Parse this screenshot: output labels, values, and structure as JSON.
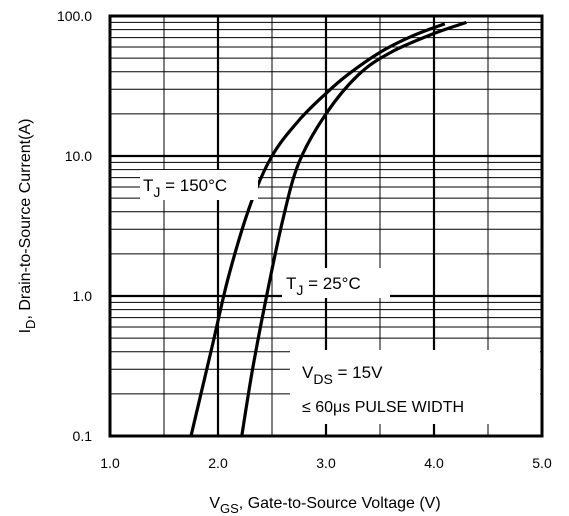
{
  "chart_data": {
    "type": "line",
    "title": "",
    "xlabel": {
      "main": "V",
      "sub": "GS",
      "rest": ", Gate-to-Source Voltage (V)"
    },
    "ylabel": {
      "main": "I",
      "sub": "D",
      "rest": ", Drain-to-Source Current(A)"
    },
    "xlim": [
      1.0,
      5.0
    ],
    "ylim": [
      0.1,
      100.0
    ],
    "yscale": "log",
    "x_ticks": [
      "1.0",
      "2.0",
      "3.0",
      "4.0",
      "5.0"
    ],
    "y_ticks": [
      "0.1",
      "1.0",
      "10.0",
      "100.0"
    ],
    "grid": true,
    "series": [
      {
        "label": {
          "main": "T",
          "sub": "J",
          "rest": " = 150°C"
        },
        "x": [
          1.75,
          1.95,
          2.1,
          2.3,
          2.5,
          2.75,
          3.0,
          3.2,
          3.5,
          3.8,
          4.1
        ],
        "y": [
          0.1,
          0.45,
          1.4,
          4.5,
          10.0,
          18.0,
          28.0,
          38.0,
          55.0,
          72.0,
          88.0
        ]
      },
      {
        "label": {
          "main": "T",
          "sub": "J",
          "rest": " = 25°C"
        },
        "x": [
          2.22,
          2.32,
          2.45,
          2.6,
          2.75,
          3.0,
          3.3,
          3.6,
          4.0,
          4.3
        ],
        "y": [
          0.1,
          0.3,
          1.0,
          3.5,
          9.0,
          20.0,
          38.0,
          55.0,
          75.0,
          90.0
        ]
      }
    ],
    "annotation": {
      "line1": {
        "main": "V",
        "sub": "DS",
        "rest": " = 15V"
      },
      "line2": "≤ 60μs PULSE WIDTH"
    }
  }
}
